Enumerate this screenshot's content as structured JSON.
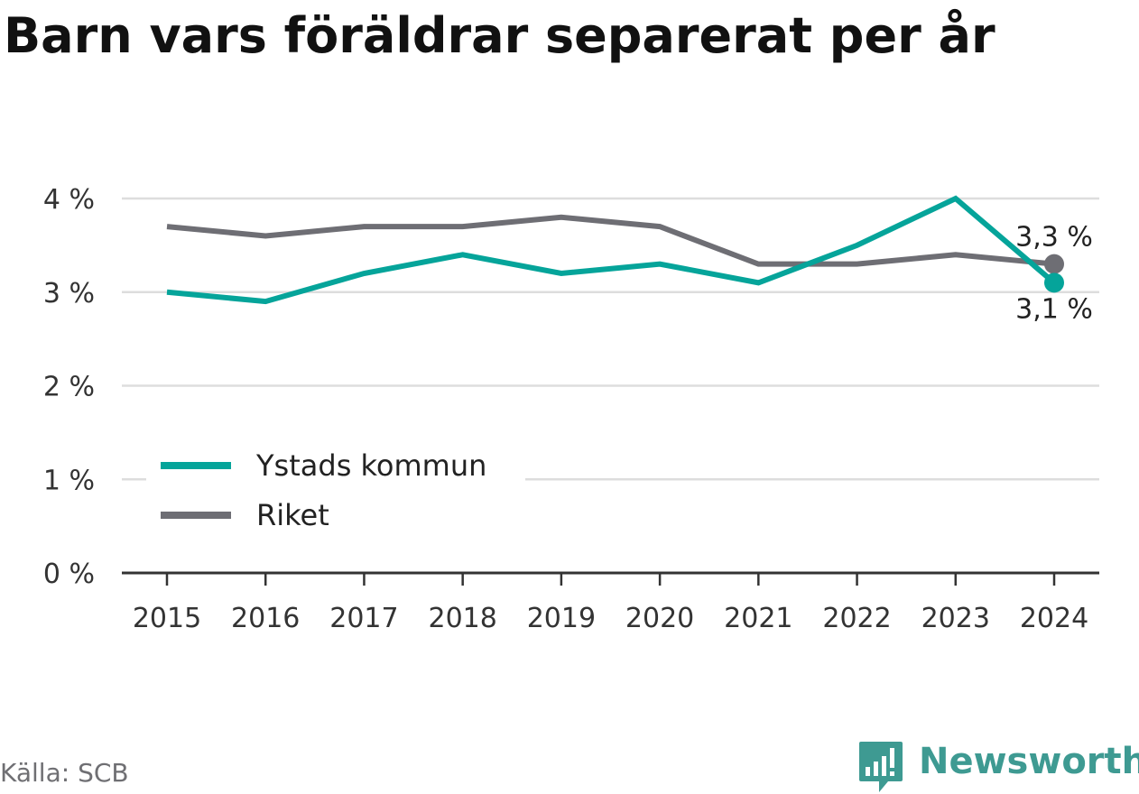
{
  "title": "Barn vars föräldrar separerat per år",
  "source": "Källa: SCB",
  "brand": {
    "name": "Newsworthy",
    "icon": "newsworthy-logo-icon",
    "color": "#3e9a92"
  },
  "chart_data": {
    "type": "line",
    "title": "Barn vars föräldrar separerat per år",
    "xlabel": "",
    "ylabel": "",
    "x": [
      "2015",
      "2016",
      "2017",
      "2018",
      "2019",
      "2020",
      "2021",
      "2022",
      "2023",
      "2024"
    ],
    "ylim": [
      0,
      4
    ],
    "yticks": [
      0,
      1,
      2,
      3,
      4
    ],
    "ytick_labels": [
      "0 %",
      "1 %",
      "2 %",
      "3 %",
      "4 %"
    ],
    "grid": true,
    "legend_position": "bottom-left",
    "series": [
      {
        "name": "Ystads kommun",
        "color": "#05a49a",
        "values": [
          3.0,
          2.9,
          3.2,
          3.4,
          3.2,
          3.3,
          3.1,
          3.5,
          4.0,
          3.1
        ],
        "end_label": "3,1 %"
      },
      {
        "name": "Riket",
        "color": "#6e6e74",
        "values": [
          3.7,
          3.6,
          3.7,
          3.7,
          3.8,
          3.7,
          3.3,
          3.3,
          3.4,
          3.3
        ],
        "end_label": "3,3 %"
      }
    ]
  }
}
